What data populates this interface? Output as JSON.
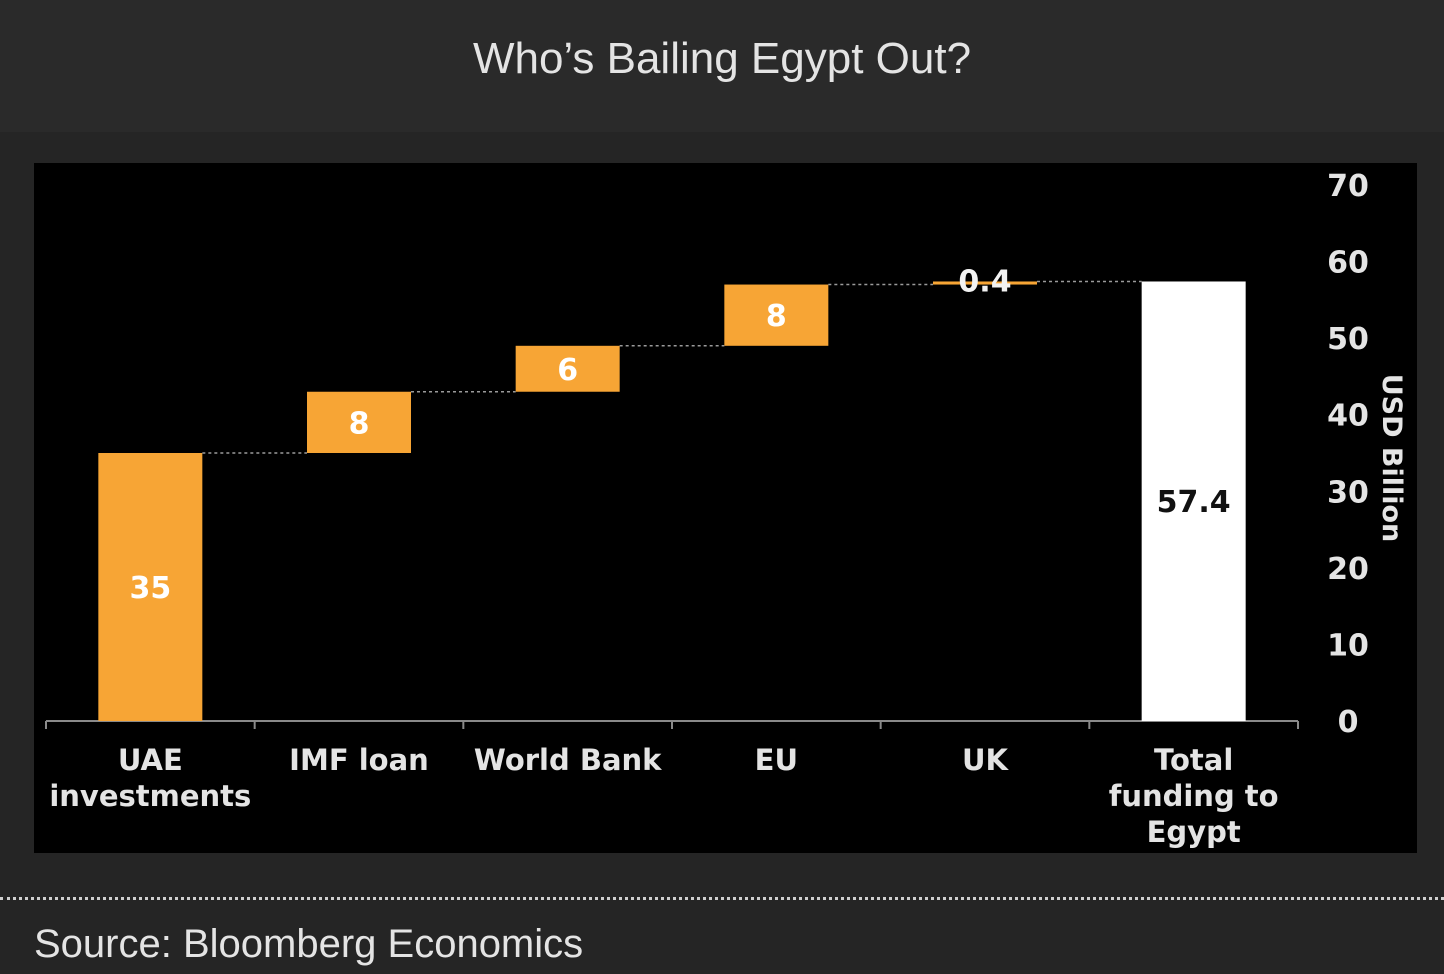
{
  "title": "Who’s Bailing Egypt Out?",
  "source": "Source: Bloomberg Economics",
  "colors": {
    "contribution": "#f7a535",
    "total": "#ffffff",
    "panel": "#000000",
    "background": "#252525",
    "text": "#e4e4e4"
  },
  "chart_data": {
    "type": "bar",
    "subtype": "waterfall",
    "categories": [
      [
        "UAE",
        "investments"
      ],
      [
        "IMF loan"
      ],
      [
        "World Bank"
      ],
      [
        "EU"
      ],
      [
        "UK"
      ],
      [
        "Total",
        "funding to",
        "Egypt"
      ]
    ],
    "values": [
      35,
      8,
      6,
      8,
      0.4,
      57.4
    ],
    "value_labels": [
      "35",
      "8",
      "6",
      "8",
      "0.4",
      "57.4"
    ],
    "is_total": [
      false,
      false,
      false,
      false,
      false,
      true
    ],
    "ylabel": "USD Billion",
    "ylim": [
      0,
      70
    ],
    "yticks": [
      0,
      10,
      20,
      30,
      40,
      50,
      60,
      70
    ],
    "y_axis_position": "right",
    "grid": false,
    "legend": "none"
  }
}
